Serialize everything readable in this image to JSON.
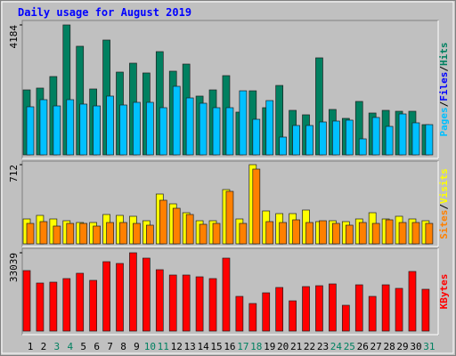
{
  "title": "Daily usage for August 2019",
  "chart_data": [
    {
      "type": "bar",
      "ylim": [
        0,
        4184
      ],
      "yticks": [
        4184
      ],
      "legend_separator": "/",
      "series": [
        {
          "name": "Hits",
          "color": "#008060",
          "values": [
            2092,
            2150,
            2522,
            4184,
            3497,
            2121,
            3697,
            2665,
            2952,
            2637,
            3324,
            2694,
            2923,
            1892,
            2092,
            2551,
            1376,
            2063,
            1519,
            2235,
            1433,
            1290,
            3124,
            1462,
            1175,
            1720,
            1347,
            1433,
            1404,
            1404,
            974
          ]
        },
        {
          "name": "Files",
          "color": "#0000ff",
          "values": [
            null,
            null,
            null,
            null,
            null,
            null,
            null,
            null,
            null,
            null,
            null,
            null,
            null,
            null,
            null,
            null,
            null,
            null,
            null,
            null,
            null,
            null,
            null,
            null,
            null,
            null,
            null,
            null,
            null,
            null,
            null
          ]
        },
        {
          "name": "Pages",
          "color": "#00c0ff",
          "values": [
            1548,
            1777,
            1576,
            1777,
            1634,
            1576,
            1892,
            1605,
            1691,
            1691,
            1519,
            2207,
            1834,
            1662,
            1519,
            1519,
            2063,
            1146,
            1748,
            573,
            946,
            946,
            1060,
            1089,
            1118,
            516,
            1204,
            917,
            1318,
            1032,
            974
          ]
        }
      ]
    },
    {
      "type": "bar",
      "ylim": [
        0,
        712
      ],
      "yticks": [
        712
      ],
      "legend_separator": "/",
      "series": [
        {
          "name": "Visits",
          "color": "#ffff00",
          "values": [
            224,
            256,
            224,
            208,
            192,
            192,
            264,
            256,
            248,
            208,
            448,
            360,
            280,
            208,
            208,
            488,
            224,
            712,
            296,
            272,
            272,
            304,
            200,
            208,
            200,
            224,
            280,
            224,
            248,
            224,
            208
          ]
        },
        {
          "name": "Sites",
          "color": "#ff8000",
          "values": [
            184,
            200,
            160,
            184,
            184,
            160,
            192,
            192,
            184,
            168,
            392,
            320,
            264,
            176,
            184,
            472,
            184,
            672,
            200,
            192,
            216,
            192,
            208,
            184,
            168,
            192,
            184,
            216,
            192,
            192,
            184
          ]
        }
      ]
    },
    {
      "type": "bar",
      "ylim": [
        0,
        33039
      ],
      "yticks": [
        33039
      ],
      "categories": [
        "1",
        "2",
        "3",
        "4",
        "5",
        "6",
        "7",
        "8",
        "9",
        "10",
        "11",
        "12",
        "13",
        "14",
        "15",
        "16",
        "17",
        "18",
        "19",
        "20",
        "21",
        "22",
        "23",
        "24",
        "25",
        "26",
        "27",
        "28",
        "29",
        "30",
        "31"
      ],
      "category_colors": [
        "#000000",
        "#000000",
        "#008060",
        "#008060",
        "#000000",
        "#000000",
        "#000000",
        "#000000",
        "#000000",
        "#008060",
        "#008060",
        "#000000",
        "#000000",
        "#000000",
        "#000000",
        "#000000",
        "#008060",
        "#008060",
        "#000000",
        "#000000",
        "#000000",
        "#000000",
        "#000000",
        "#008060",
        "#008060",
        "#000000",
        "#000000",
        "#000000",
        "#000000",
        "#000000",
        "#008060"
      ],
      "series": [
        {
          "name": "KBytes",
          "color": "#ff0000",
          "values": [
            25527,
            20272,
            20647,
            22149,
            24401,
            21398,
            29281,
            28530,
            33039,
            30783,
            25903,
            23650,
            23650,
            22899,
            22149,
            30783,
            14641,
            11637,
            16142,
            18395,
            12764,
            18770,
            19145,
            19896,
            10887,
            19521,
            14641,
            19521,
            18019,
            25152,
            17644
          ]
        }
      ]
    }
  ]
}
